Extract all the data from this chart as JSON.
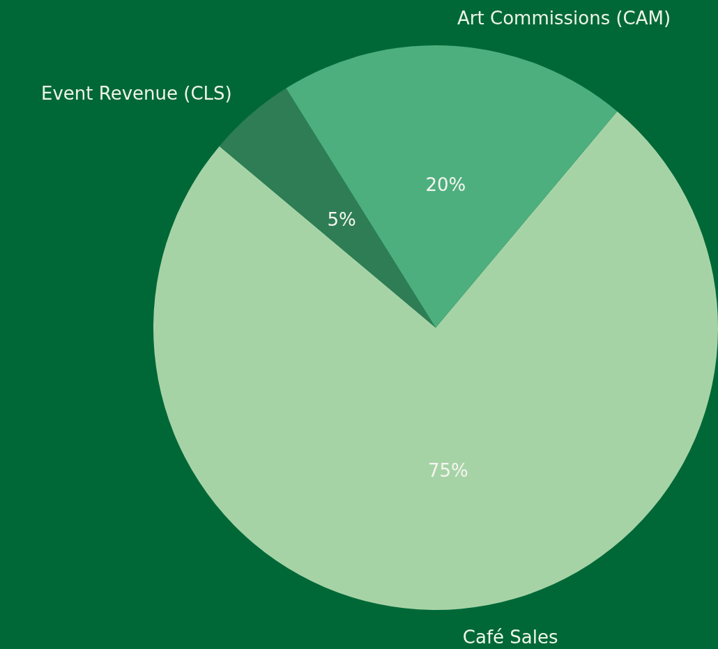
{
  "chart_data": {
    "type": "pie",
    "categories": [
      "Café Sales",
      "Event Revenue (CLS)",
      "Art Commissions (CAM)"
    ],
    "values": [
      75,
      5,
      20
    ],
    "value_labels": [
      "75%",
      "5%",
      "20%"
    ],
    "colors": [
      "#a6d3a6",
      "#2e7d55",
      "#4daf7e"
    ]
  }
}
